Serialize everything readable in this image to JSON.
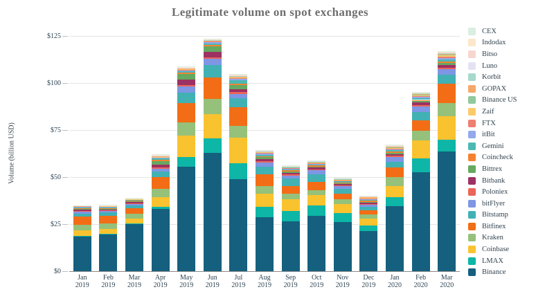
{
  "title": "Legitimate volume on spot exchanges",
  "y_axis": {
    "label": "Volume (billion USD)",
    "tick_labels": [
      "$0",
      "$25",
      "$50",
      "$75",
      "$100",
      "$125"
    ]
  },
  "x_axis": {
    "labels": [
      [
        "Jan",
        "2019"
      ],
      [
        "Feb",
        "2019"
      ],
      [
        "Mar",
        "2019"
      ],
      [
        "Apr",
        "2019"
      ],
      [
        "May",
        "2019"
      ],
      [
        "Jun",
        "2019"
      ],
      [
        "Jul",
        "2019"
      ],
      [
        "Aug",
        "2019"
      ],
      [
        "Sep",
        "2019"
      ],
      [
        "Oct",
        "2019"
      ],
      [
        "Nov",
        "2019"
      ],
      [
        "Dec",
        "2019"
      ],
      [
        "Jan",
        "2020"
      ],
      [
        "Feb",
        "2020"
      ],
      [
        "Mar",
        "2020"
      ]
    ]
  },
  "legend_order_top_to_bottom": [
    "CEX",
    "Indodax",
    "Bitso",
    "Luno",
    "Korbit",
    "GOPAX",
    "Binance US",
    "Zaif",
    "FTX",
    "itBit",
    "Gemini",
    "Coincheck",
    "Bittrex",
    "Bitbank",
    "Poloniex",
    "bitFlyer",
    "Bitstamp",
    "Bitfinex",
    "Kraken",
    "Coinbase",
    "LMAX",
    "Binance"
  ],
  "chart_data": {
    "type": "bar",
    "stacked": true,
    "title": "Legitimate volume on spot exchanges",
    "xlabel": "",
    "ylabel": "Volume (billion USD)",
    "ylim": [
      0,
      125
    ],
    "yticks": [
      0,
      25,
      50,
      75,
      100,
      125
    ],
    "grid": true,
    "legend_position": "right",
    "categories": [
      "Jan 2019",
      "Feb 2019",
      "Mar 2019",
      "Apr 2019",
      "May 2019",
      "Jun 2019",
      "Jul 2019",
      "Aug 2019",
      "Sep 2019",
      "Oct 2019",
      "Nov 2019",
      "Dec 2019",
      "Jan 2020",
      "Feb 2020",
      "Mar 2020"
    ],
    "series_note": "values in billion USD, listed bottom-to-top of stack",
    "series": [
      {
        "name": "Binance",
        "color": "#15607e",
        "values": [
          18.5,
          19.5,
          25.0,
          33.0,
          55.5,
          63.0,
          49.0,
          28.5,
          26.5,
          29.5,
          26.0,
          21.5,
          34.5,
          52.5,
          63.5
        ]
      },
      {
        "name": "LMAX",
        "color": "#0db6a6",
        "values": [
          0.3,
          0.3,
          0.4,
          1.2,
          5.0,
          7.5,
          8.3,
          5.8,
          5.5,
          5.5,
          4.8,
          2.8,
          4.7,
          7.3,
          6.5
        ]
      },
      {
        "name": "Coinbase",
        "color": "#f9c22f",
        "values": [
          3.0,
          2.7,
          2.5,
          5.2,
          11.5,
          13.0,
          13.5,
          6.8,
          6.1,
          5.5,
          4.8,
          3.5,
          6.0,
          9.8,
          12.5
        ]
      },
      {
        "name": "Kraken",
        "color": "#95c17b",
        "values": [
          2.8,
          2.8,
          2.5,
          4.5,
          7.0,
          8.0,
          6.5,
          4.3,
          3.0,
          2.5,
          2.5,
          2.2,
          4.9,
          5.0,
          7.0
        ]
      },
      {
        "name": "Bitfinex",
        "color": "#f26d15",
        "values": [
          4.5,
          4.0,
          3.2,
          6.0,
          10.5,
          11.5,
          10.0,
          6.2,
          4.3,
          4.3,
          3.0,
          2.5,
          5.0,
          5.5,
          10.0
        ]
      },
      {
        "name": "Bitstamp",
        "color": "#41b1b4",
        "values": [
          1.5,
          1.8,
          1.5,
          3.2,
          5.5,
          6.5,
          4.5,
          4.0,
          3.7,
          4.0,
          2.7,
          1.6,
          3.1,
          4.5,
          5.0
        ]
      },
      {
        "name": "bitFlyer",
        "color": "#7e96e4",
        "values": [
          1.2,
          0.8,
          0.8,
          1.2,
          3.0,
          3.3,
          2.5,
          2.3,
          1.8,
          2.5,
          1.5,
          1.2,
          2.6,
          3.0,
          2.8
        ]
      },
      {
        "name": "Poloniex",
        "color": "#ec6559",
        "values": [
          0.3,
          0.3,
          0.3,
          0.8,
          1.0,
          0.8,
          1.0,
          0.6,
          0.5,
          0.4,
          0.3,
          0.5,
          0.5,
          0.8,
          0.9
        ]
      },
      {
        "name": "Bitbank",
        "color": "#9c3263",
        "values": [
          0.5,
          0.5,
          0.4,
          1.4,
          3.0,
          3.0,
          1.5,
          1.0,
          0.8,
          0.8,
          0.6,
          0.5,
          0.8,
          1.2,
          1.3
        ]
      },
      {
        "name": "Bittrex",
        "color": "#66a961",
        "values": [
          0.5,
          0.5,
          0.5,
          1.8,
          2.8,
          2.9,
          2.0,
          1.0,
          0.8,
          0.7,
          0.6,
          0.6,
          0.8,
          0.8,
          1.0
        ]
      },
      {
        "name": "Coincheck",
        "color": "#f58231",
        "values": [
          0.4,
          0.4,
          0.3,
          0.8,
          0.8,
          0.8,
          1.0,
          0.6,
          0.5,
          0.5,
          0.4,
          0.5,
          0.6,
          0.6,
          0.8
        ]
      },
      {
        "name": "Gemini",
        "color": "#4cb8b2",
        "values": [
          0.4,
          0.4,
          0.4,
          0.8,
          0.8,
          0.8,
          1.5,
          0.8,
          0.6,
          0.6,
          0.5,
          0.5,
          0.7,
          1.0,
          1.2
        ]
      },
      {
        "name": "itBit",
        "color": "#94a9ec",
        "values": [
          0.3,
          0.3,
          0.3,
          0.5,
          0.5,
          0.5,
          0.8,
          0.5,
          0.4,
          0.4,
          0.3,
          0.3,
          0.5,
          0.5,
          0.7
        ]
      },
      {
        "name": "FTX",
        "color": "#ee7f72",
        "values": [
          0.0,
          0.0,
          0.0,
          0.1,
          0.2,
          0.3,
          0.4,
          0.4,
          0.3,
          0.3,
          0.3,
          0.4,
          0.5,
          0.6,
          0.8
        ]
      },
      {
        "name": "Zaif",
        "color": "#fbca69",
        "values": [
          0.3,
          0.3,
          0.2,
          0.3,
          0.4,
          0.4,
          0.5,
          0.4,
          0.3,
          0.3,
          0.3,
          0.3,
          0.4,
          0.4,
          0.6
        ]
      },
      {
        "name": "Binance US",
        "color": "#90c99e",
        "values": [
          0.0,
          0.0,
          0.0,
          0.0,
          0.0,
          0.0,
          0.0,
          0.0,
          0.2,
          0.3,
          0.3,
          0.3,
          0.4,
          0.5,
          0.6
        ]
      },
      {
        "name": "GOPAX",
        "color": "#f6a869",
        "values": [
          0.1,
          0.1,
          0.1,
          0.3,
          0.3,
          0.3,
          0.4,
          0.3,
          0.2,
          0.2,
          0.2,
          0.2,
          0.3,
          0.3,
          0.4
        ]
      },
      {
        "name": "Korbit",
        "color": "#a6d9cc",
        "values": [
          0.1,
          0.1,
          0.1,
          0.2,
          0.2,
          0.2,
          0.3,
          0.2,
          0.15,
          0.15,
          0.15,
          0.15,
          0.2,
          0.2,
          0.3
        ]
      },
      {
        "name": "Luno",
        "color": "#e4e2f2",
        "values": [
          0.05,
          0.05,
          0.05,
          0.15,
          0.15,
          0.15,
          0.2,
          0.15,
          0.1,
          0.1,
          0.1,
          0.1,
          0.15,
          0.15,
          0.2
        ]
      },
      {
        "name": "Bitso",
        "color": "#f8d6d0",
        "values": [
          0.05,
          0.05,
          0.05,
          0.15,
          0.15,
          0.15,
          0.2,
          0.15,
          0.1,
          0.1,
          0.1,
          0.1,
          0.15,
          0.15,
          0.2
        ]
      },
      {
        "name": "Indodax",
        "color": "#fbe7cc",
        "values": [
          0.1,
          0.1,
          0.1,
          0.2,
          0.2,
          0.2,
          0.3,
          0.2,
          0.15,
          0.15,
          0.15,
          0.15,
          0.2,
          0.2,
          0.25
        ]
      },
      {
        "name": "CEX",
        "color": "#daeee3",
        "values": [
          0.1,
          0.1,
          0.1,
          0.2,
          0.25,
          0.25,
          0.3,
          0.2,
          0.15,
          0.15,
          0.15,
          0.15,
          0.2,
          0.25,
          0.25
        ]
      }
    ]
  },
  "colors": {
    "background": "#ffffff",
    "title_text": "#6e6e6e",
    "axis_text": "#2e4453",
    "gridline": "#e4e4e4",
    "zero_line": "#8a8a8a"
  }
}
